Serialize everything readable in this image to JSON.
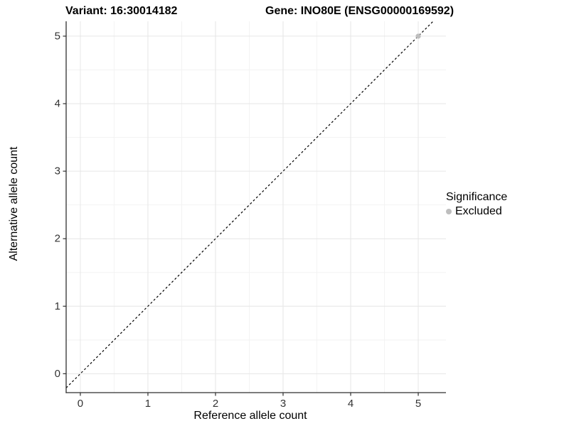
{
  "chart_data": {
    "type": "scatter",
    "title_left": "Variant: 16:30014182",
    "title_right": "Gene: INO80E (ENSG00000169592)",
    "xlabel": "Reference allele count",
    "ylabel": "Alternative allele count",
    "xlim": [
      -0.21,
      5.41
    ],
    "ylim": [
      -0.28,
      5.22
    ],
    "xticks": [
      0,
      1,
      2,
      3,
      4,
      5
    ],
    "yticks": [
      0,
      1,
      2,
      3,
      4,
      5
    ],
    "minor_grid_step": 0.5,
    "grid": "major+minor",
    "reference_line": {
      "type": "abline",
      "slope": 1,
      "intercept": 0,
      "style": "dashed",
      "color": "#000000"
    },
    "series": [
      {
        "name": "Excluded",
        "color": "#bebebe",
        "points": [
          {
            "x": 5,
            "y": 5
          }
        ]
      }
    ],
    "legend": {
      "title": "Significance",
      "position": "right",
      "items": [
        {
          "label": "Excluded",
          "color": "#bebebe",
          "marker": "circle"
        }
      ]
    },
    "colors": {
      "background": "#ffffff",
      "grid_major": "#e6e6e6",
      "grid_minor": "#f3f3f3",
      "axis": "#2f2f2f",
      "tick_label": "#333333"
    }
  }
}
